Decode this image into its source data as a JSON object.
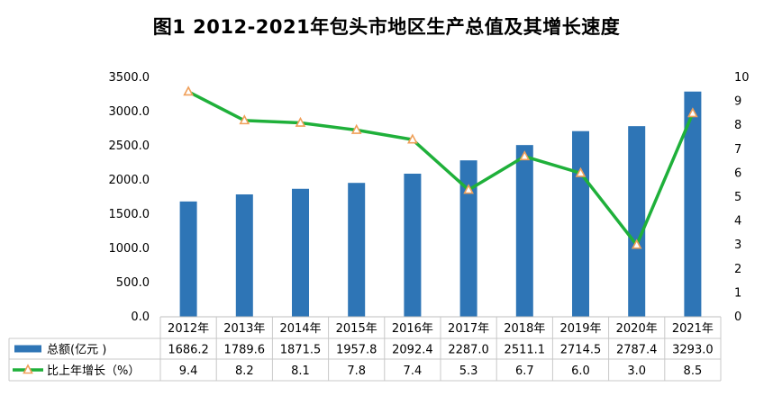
{
  "title": "图1 2012-2021年包头市地区生产总值及其增长速度",
  "chart_data": {
    "type": "bar+line",
    "title": "图1 2012-2021年包头市地区生产总值及其增长速度",
    "categories": [
      "2012年",
      "2013年",
      "2014年",
      "2015年",
      "2016年",
      "2017年",
      "2018年",
      "2019年",
      "2020年",
      "2021年"
    ],
    "series": [
      {
        "name": "总额(亿元 )",
        "type": "bar",
        "axis": "left",
        "color": "#2e75b6",
        "values": [
          1686.2,
          1789.6,
          1871.5,
          1957.8,
          2092.4,
          2287.0,
          2511.1,
          2714.5,
          2787.4,
          3293.0
        ],
        "labels": [
          "1686.2",
          "1789.6",
          "1871.5",
          "1957.8",
          "2092.4",
          "2287.0",
          "2511.1",
          "2714.5",
          "2787.4",
          "3293.0"
        ]
      },
      {
        "name": "比上年增长（%）",
        "type": "line",
        "axis": "right",
        "color": "#1fb03a",
        "marker_color": "#f0a05a",
        "values": [
          9.4,
          8.2,
          8.1,
          7.8,
          7.4,
          5.3,
          6.7,
          6.0,
          3.0,
          8.5
        ],
        "labels": [
          "9.4",
          "8.2",
          "8.1",
          "7.8",
          "7.4",
          "5.3",
          "6.7",
          "6.0",
          "3.0",
          "8.5"
        ]
      }
    ],
    "y_left": {
      "min": 0,
      "max": 3500,
      "ticks": [
        "0.0",
        "500.0",
        "1000.0",
        "1500.0",
        "2000.0",
        "2500.0",
        "3000.0",
        "3500.0"
      ]
    },
    "y_right": {
      "min": 0,
      "max": 10,
      "ticks": [
        "0",
        "1",
        "2",
        "3",
        "4",
        "5",
        "6",
        "7",
        "8",
        "9",
        "10"
      ]
    },
    "legend": "data-table"
  }
}
